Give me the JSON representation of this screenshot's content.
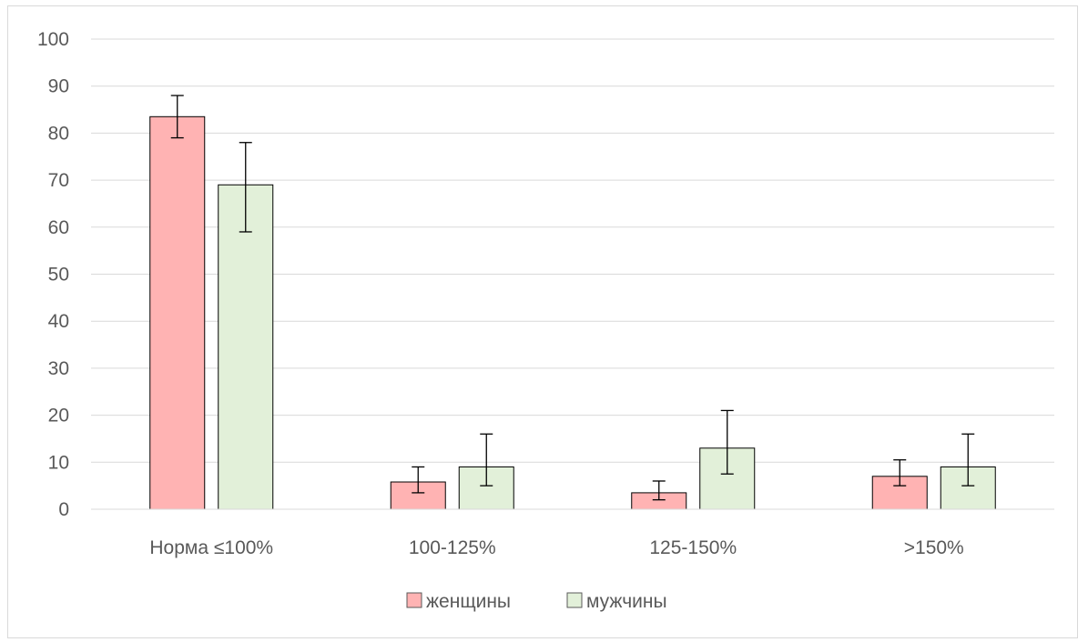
{
  "chart_data": {
    "type": "bar",
    "title": "",
    "xlabel": "",
    "ylabel": "",
    "ylim": [
      0,
      100
    ],
    "yticks": [
      0,
      10,
      20,
      30,
      40,
      50,
      60,
      70,
      80,
      90,
      100
    ],
    "grid": true,
    "legend_position": "bottom",
    "categories": [
      "Норма ≤100%",
      "100-125%",
      "125-150%",
      ">150%"
    ],
    "series": [
      {
        "name": "женщины",
        "color": "#ffb3b3",
        "values": [
          83.5,
          5.8,
          3.5,
          7.0
        ],
        "error_low": [
          79.0,
          3.5,
          2.0,
          5.0
        ],
        "error_high": [
          88.0,
          9.0,
          6.0,
          10.5
        ]
      },
      {
        "name": "мужчины",
        "color": "#e2f0d9",
        "values": [
          69.0,
          9.0,
          13.0,
          9.0
        ],
        "error_low": [
          59.0,
          5.0,
          7.5,
          5.0
        ],
        "error_high": [
          78.0,
          16.0,
          21.0,
          16.0
        ]
      }
    ]
  }
}
